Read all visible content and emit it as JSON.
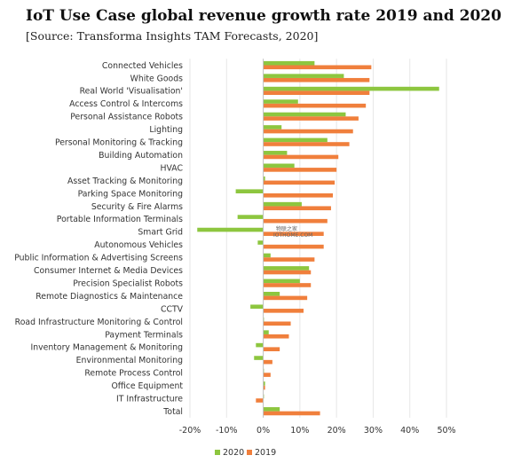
{
  "header": {
    "title": "IoT Use Case global revenue growth rate 2019 and 2020",
    "source": "[Source: Transforma Insights TAM Forecasts, 2020]"
  },
  "watermark": {
    "line1": "物联之家",
    "line2": "IOTHOME.COM"
  },
  "chart_data": {
    "type": "bar",
    "orientation": "horizontal",
    "categories": [
      "Connected Vehicles",
      "White Goods",
      "Real World 'Visualisation'",
      "Access Control & Intercoms",
      "Personal Assistance Robots",
      "Lighting",
      "Personal Monitoring & Tracking",
      "Building Automation",
      "HVAC",
      "Asset Tracking & Monitoring",
      "Parking Space Monitoring",
      "Security & Fire Alarms",
      "Portable Information Terminals",
      "Smart Grid",
      "Autonomous Vehicles",
      "Public Information & Advertising Screens",
      "Consumer Internet & Media Devices",
      "Precision Specialist Robots",
      "Remote Diagnostics & Maintenance",
      "CCTV",
      "Road Infrastructure Monitoring & Control",
      "Payment Terminals",
      "Inventory Management & Monitoring",
      "Environmental Monitoring",
      "Remote Process Control",
      "Office Equipment",
      "IT Infrastructure",
      "Total"
    ],
    "series": [
      {
        "name": "2020",
        "color": "#8dc63f",
        "values": [
          14,
          22,
          48,
          9.5,
          22.5,
          5,
          17.5,
          6.5,
          8.5,
          0.5,
          -7.5,
          10.5,
          -7,
          -18,
          -1.5,
          2,
          12.5,
          10,
          4.5,
          -3.5,
          0,
          1.5,
          -2,
          -2.5,
          0,
          0.5,
          0,
          4.5
        ]
      },
      {
        "name": "2019",
        "color": "#f07f3c",
        "values": [
          29.5,
          29,
          29,
          28,
          26,
          24.5,
          23.5,
          20.5,
          20,
          19.5,
          19,
          18.5,
          17.5,
          16.5,
          16.5,
          14,
          13,
          13,
          12,
          11,
          7.5,
          7,
          4.5,
          2.5,
          2,
          0.5,
          -2,
          15.5
        ]
      }
    ],
    "xlim": [
      -20,
      50
    ],
    "xticks": [
      -20,
      -10,
      0,
      10,
      20,
      30,
      40,
      50
    ],
    "xtick_labels": [
      "-20%",
      "-10%",
      "0%",
      "10%",
      "20%",
      "30%",
      "40%",
      "50%"
    ],
    "xlabel": "",
    "ylabel": "",
    "grid": true,
    "legend_position": "bottom-center"
  }
}
